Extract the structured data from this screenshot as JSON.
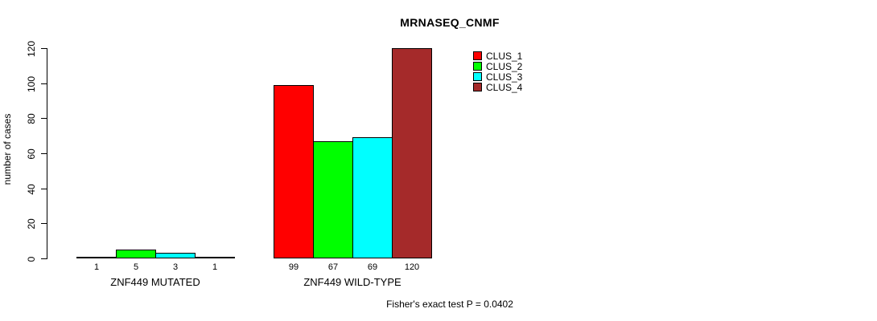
{
  "chart_data": {
    "type": "bar",
    "title": "MRNASEQ_CNMF",
    "ylabel": "number of cases",
    "xlabel": "",
    "ylim": [
      0,
      120
    ],
    "yticks": [
      0,
      20,
      40,
      60,
      80,
      100,
      120
    ],
    "categories": [
      "ZNF449 MUTATED",
      "ZNF449 WILD-TYPE"
    ],
    "series": [
      {
        "name": "CLUS_1",
        "color": "#FF0000",
        "values": [
          1,
          99
        ]
      },
      {
        "name": "CLUS_2",
        "color": "#00FF00",
        "values": [
          5,
          67
        ]
      },
      {
        "name": "CLUS_3",
        "color": "#00FFFF",
        "values": [
          3,
          69
        ]
      },
      {
        "name": "CLUS_4",
        "color": "#A52A2A",
        "values": [
          1,
          120
        ]
      }
    ],
    "bar_value_labels": [
      [
        "1",
        "5",
        "3",
        "1"
      ],
      [
        "99",
        "67",
        "69",
        "120"
      ]
    ],
    "legend_position": "top-right",
    "grid": false,
    "annotation": "Fisher's exact test P = 0.0402"
  }
}
